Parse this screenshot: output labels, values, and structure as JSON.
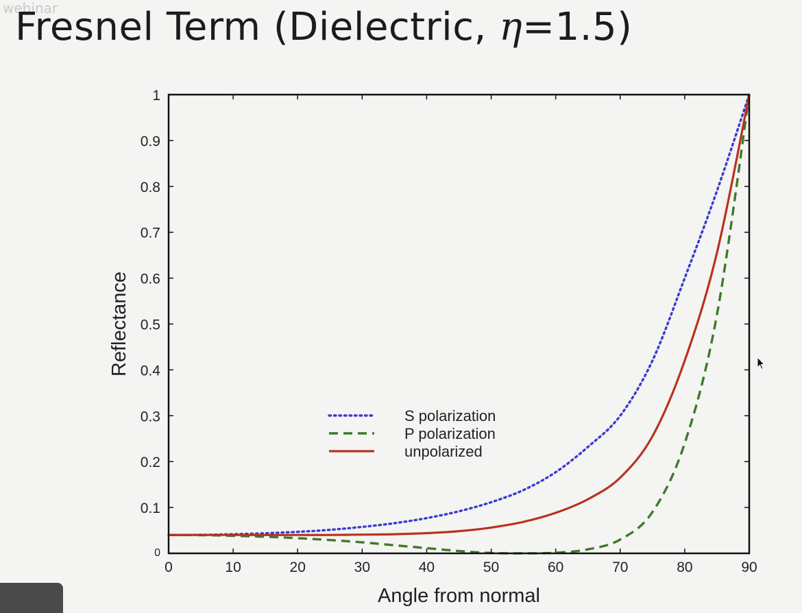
{
  "slide": {
    "title_prefix": "Fresnel Term (Dielectric, ",
    "title_eta": "η",
    "title_suffix": "=1.5)",
    "watermark": "webinar"
  },
  "chart_data": {
    "type": "line",
    "xlabel": "Angle from normal",
    "ylabel": "Reflectance",
    "xlim": [
      0,
      90
    ],
    "ylim": [
      0,
      1
    ],
    "xticks": [
      0,
      10,
      20,
      30,
      40,
      50,
      60,
      70,
      80,
      90
    ],
    "yticks": [
      0,
      0.1,
      0.2,
      0.3,
      0.4,
      0.5,
      0.6,
      0.7,
      0.8,
      0.9,
      1
    ],
    "ytick_labels": [
      "0",
      "0.1",
      "0.2",
      "0.3",
      "0.4",
      "0.5",
      "0.6",
      "0.7",
      "0.8",
      "0.9",
      "1"
    ],
    "grid": false,
    "legend_position": "center-left",
    "x": [
      0,
      5,
      10,
      15,
      20,
      25,
      30,
      35,
      40,
      45,
      50,
      55,
      60,
      65,
      70,
      75,
      80,
      85,
      90
    ],
    "series": [
      {
        "name": "S polarization",
        "style": "dotted",
        "color": "#3b3bd0",
        "values": [
          0.04,
          0.0404,
          0.0417,
          0.0438,
          0.0469,
          0.0512,
          0.0577,
          0.0657,
          0.0769,
          0.0917,
          0.1115,
          0.138,
          0.177,
          0.232,
          0.3,
          0.42,
          0.6,
          0.79,
          1.0
        ]
      },
      {
        "name": "P polarization",
        "style": "dashed",
        "color": "#3d7a2a",
        "values": [
          0.04,
          0.0396,
          0.0383,
          0.0361,
          0.0331,
          0.029,
          0.024,
          0.0177,
          0.0113,
          0.0051,
          0.0008,
          0.0,
          0.0014,
          0.0087,
          0.03,
          0.09,
          0.24,
          0.52,
          1.0
        ]
      },
      {
        "name": "unpolarized",
        "style": "solid",
        "color": "#b8321f",
        "values": [
          0.04,
          0.04,
          0.04,
          0.0399,
          0.04,
          0.0401,
          0.0408,
          0.0417,
          0.0441,
          0.0484,
          0.0562,
          0.0686,
          0.0883,
          0.118,
          0.165,
          0.255,
          0.42,
          0.655,
          1.0
        ]
      }
    ]
  }
}
